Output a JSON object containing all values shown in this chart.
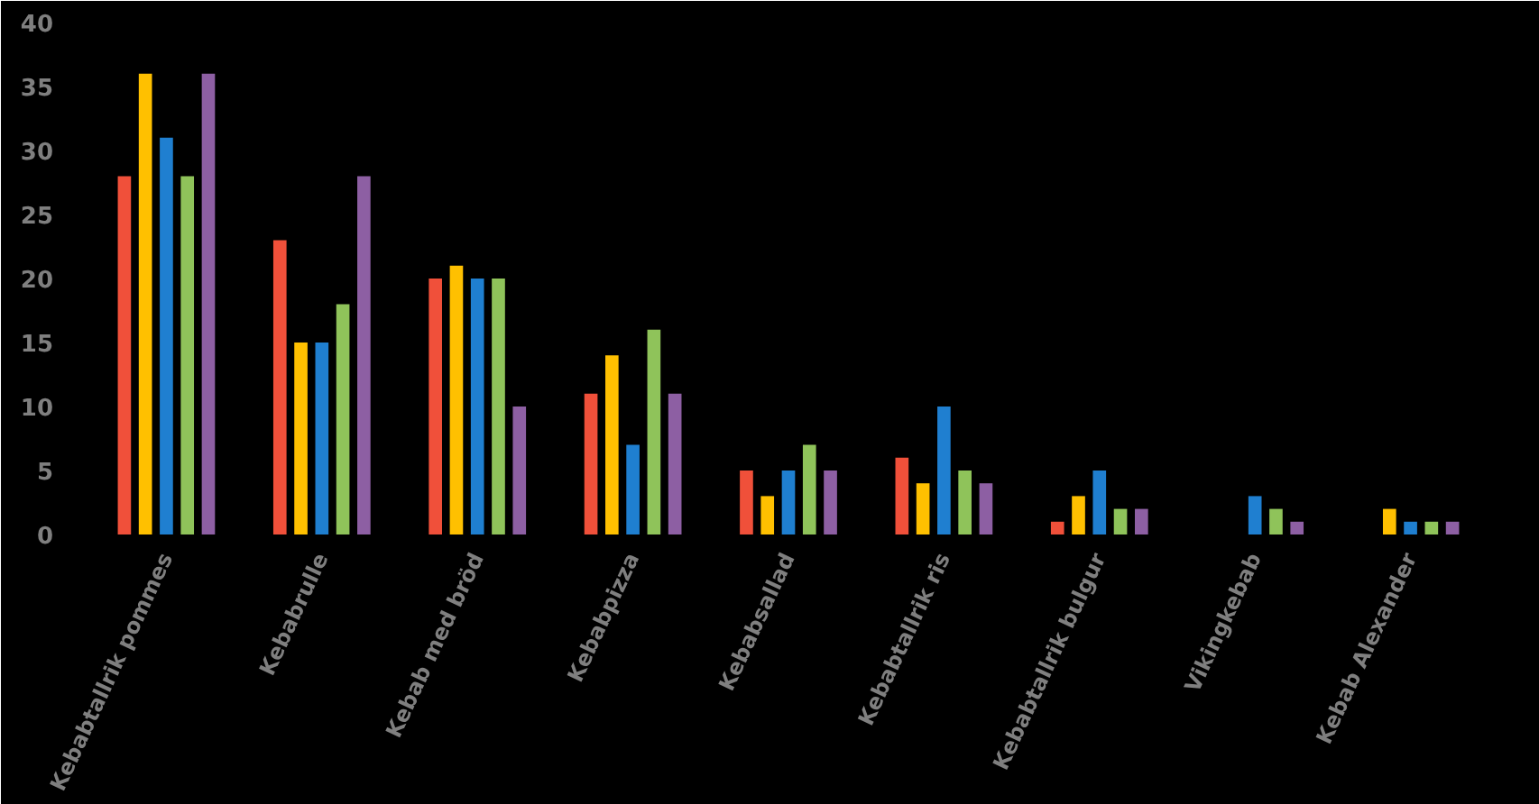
{
  "chart_data": {
    "type": "bar",
    "categories": [
      "Kebabtallrik pommes",
      "Kebabrulle",
      "Kebab med bröd",
      "Kebabpizza",
      "Kebabsallad",
      "Kebabtallrik ris",
      "Kebabtallrik bulgur",
      "Vikingkebab",
      "Kebab Alexander"
    ],
    "series": [
      {
        "color": "#f0503a",
        "values": [
          28,
          23,
          20,
          11,
          5,
          6,
          1,
          0,
          0
        ]
      },
      {
        "color": "#ffc000",
        "values": [
          36,
          15,
          21,
          14,
          3,
          4,
          3,
          0,
          2
        ]
      },
      {
        "color": "#1f7fd0",
        "values": [
          31,
          15,
          20,
          7,
          5,
          10,
          5,
          3,
          1
        ]
      },
      {
        "color": "#8fc35a",
        "values": [
          28,
          18,
          20,
          16,
          7,
          5,
          2,
          2,
          1
        ]
      },
      {
        "color": "#8d5fa3",
        "values": [
          36,
          28,
          10,
          11,
          5,
          4,
          2,
          1,
          1
        ]
      }
    ],
    "ylim": [
      0,
      40
    ],
    "yticks": [
      0,
      5,
      10,
      15,
      20,
      25,
      30,
      35,
      40
    ],
    "grid": false
  }
}
